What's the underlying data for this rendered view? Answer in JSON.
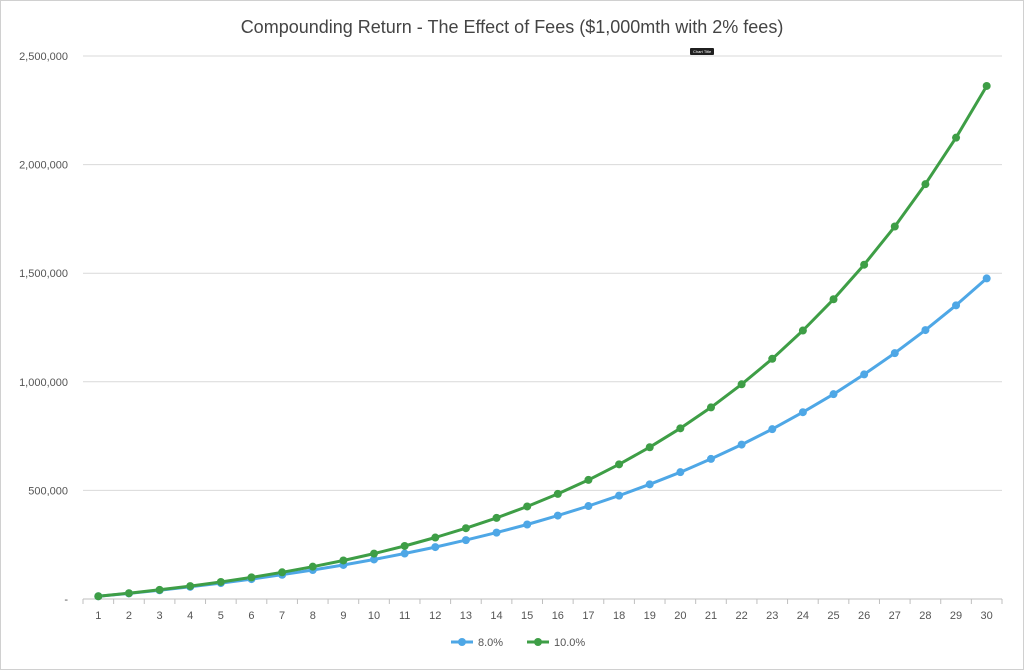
{
  "chart_data": {
    "type": "line",
    "title": "Compounding Return - The Effect of Fees ($1,000mth with 2% fees)",
    "tooltip": "Chart Title",
    "xlabel": "",
    "ylabel": "",
    "ylim": [
      0,
      2500000
    ],
    "yticks": [
      0,
      500000,
      1000000,
      1500000,
      2000000,
      2500000
    ],
    "ytick_labels": [
      "-",
      "500,000",
      "1,000,000",
      "1,500,000",
      "2,000,000",
      "2,500,000"
    ],
    "grid": "horizontal",
    "legend_position": "bottom",
    "x": [
      1,
      2,
      3,
      4,
      5,
      6,
      7,
      8,
      9,
      10,
      11,
      12,
      13,
      14,
      15,
      16,
      17,
      18,
      19,
      20,
      21,
      22,
      23,
      24,
      25,
      26,
      27,
      28,
      29,
      30
    ],
    "series": [
      {
        "name": "8.0%",
        "color": "#4ea7e6",
        "values": [
          12400,
          25800,
          40300,
          56100,
          73200,
          91700,
          111700,
          133300,
          156700,
          182000,
          209400,
          239000,
          271000,
          305600,
          343000,
          384000,
          428000,
          476000,
          528000,
          584000,
          645000,
          711000,
          782000,
          860000,
          943000,
          1034000,
          1132000,
          1238000,
          1352000,
          1476000
        ]
      },
      {
        "name": "10.0%",
        "color": "#3e9e46",
        "values": [
          12600,
          26600,
          42200,
          59400,
          78400,
          99500,
          122900,
          148800,
          177400,
          209000,
          244200,
          283000,
          326000,
          373500,
          426000,
          484000,
          548500,
          620000,
          698700,
          785700,
          882000,
          988500,
          1106000,
          1236000,
          1380000,
          1539000,
          1715000,
          1910000,
          2124000,
          2362000
        ]
      }
    ]
  }
}
